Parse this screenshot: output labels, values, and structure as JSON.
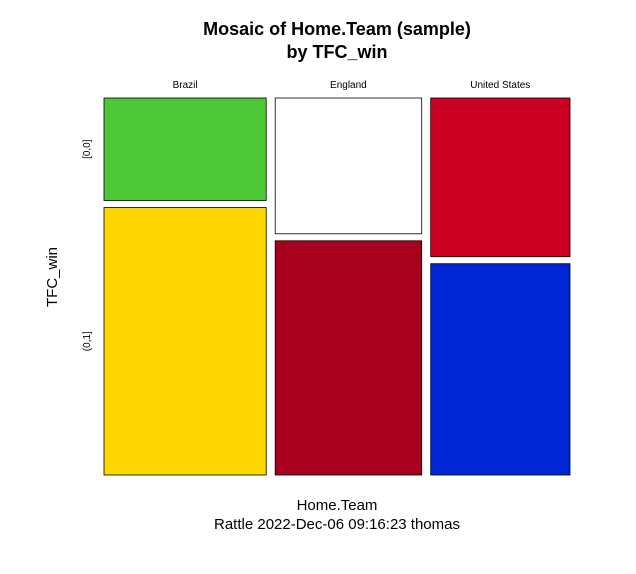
{
  "chart_data": {
    "type": "mosaic",
    "title": [
      "Mosaic of Home.Team (sample)",
      "by TFC_win"
    ],
    "xlabel": "Home.Team",
    "ylabel": "TFC_win",
    "caption": "Rattle 2022-Dec-06 09:16:23 thomas",
    "categories": [
      "Brazil",
      "England",
      "United States"
    ],
    "column_widths": [
      0.362,
      0.327,
      0.311
    ],
    "rows": [
      "[0,0]",
      "(0,1]"
    ],
    "cells": [
      {
        "category": "Brazil",
        "proportions": [
          0.277,
          0.723
        ],
        "colors": [
          "#4ec736",
          "#ffd700"
        ]
      },
      {
        "category": "England",
        "proportions": [
          0.367,
          0.633
        ],
        "colors": [
          "#ffffff",
          "#a8001e"
        ]
      },
      {
        "category": "United States",
        "proportions": [
          0.429,
          0.571
        ],
        "colors": [
          "#cc0022",
          "#0026d6"
        ]
      }
    ],
    "grid": false,
    "legend": "none"
  }
}
